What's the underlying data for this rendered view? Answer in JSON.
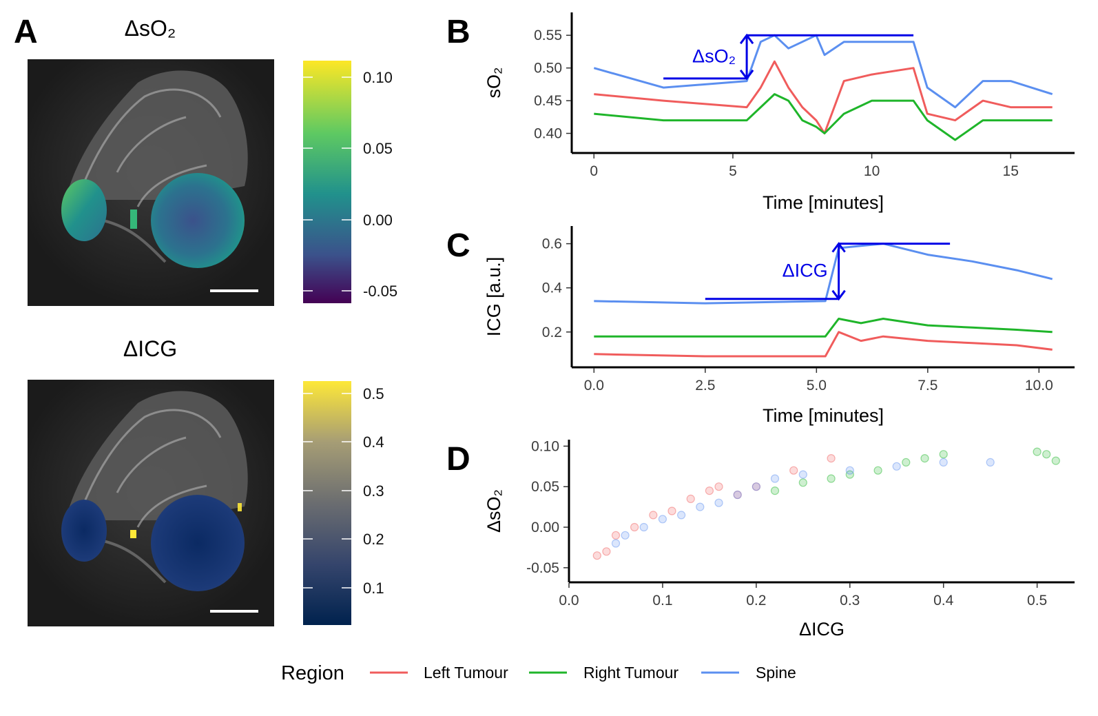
{
  "panel_letters": {
    "a": "A",
    "b": "B",
    "c": "C",
    "d": "D"
  },
  "panel_a": {
    "top_title": "ΔsO₂",
    "bottom_title": "ΔICG",
    "top_colorbar_labels": [
      "0.10",
      "0.05",
      "0.00",
      "-0.05"
    ],
    "bottom_colorbar_labels": [
      "0.5",
      "0.4",
      "0.3",
      "0.2",
      "0.1"
    ],
    "top_colormap": "viridis",
    "bottom_colormap": "cividis"
  },
  "colors": {
    "left_tumour": "#f05c5c",
    "right_tumour": "#1fb52a",
    "spine": "#5b8ff0",
    "annotation": "#0000e6"
  },
  "legend": {
    "title": "Region",
    "items": [
      "Left Tumour",
      "Right Tumour",
      "Spine"
    ]
  },
  "chart_data": [
    {
      "id": "B",
      "type": "line",
      "xlabel": "Time [minutes]",
      "ylabel": "sO₂",
      "xlim": [
        -0.8,
        17.3
      ],
      "ylim": [
        0.37,
        0.585
      ],
      "xticks": [
        0,
        5,
        10,
        15
      ],
      "xtick_labels": [
        "0",
        "5",
        "10",
        "15"
      ],
      "yticks": [
        0.4,
        0.45,
        0.5,
        0.55
      ],
      "ytick_labels": [
        "0.40",
        "0.45",
        "0.50",
        "0.55"
      ],
      "series": [
        {
          "name": "Left Tumour",
          "x": [
            0,
            2.5,
            5.5,
            6.0,
            6.5,
            7.0,
            7.5,
            8.0,
            8.3,
            9.0,
            10.0,
            11.5,
            12.0,
            13.0,
            14.0,
            15.0,
            16.5
          ],
          "y": [
            0.46,
            0.45,
            0.44,
            0.47,
            0.51,
            0.47,
            0.44,
            0.42,
            0.4,
            0.48,
            0.49,
            0.5,
            0.43,
            0.42,
            0.45,
            0.44,
            0.44
          ]
        },
        {
          "name": "Right Tumour",
          "x": [
            0,
            2.5,
            5.5,
            6.0,
            6.5,
            7.0,
            7.5,
            8.0,
            8.3,
            9.0,
            10.0,
            11.5,
            12.0,
            13.0,
            14.0,
            15.0,
            16.5
          ],
          "y": [
            0.43,
            0.42,
            0.42,
            0.44,
            0.46,
            0.45,
            0.42,
            0.41,
            0.4,
            0.43,
            0.45,
            0.45,
            0.42,
            0.39,
            0.42,
            0.42,
            0.42
          ]
        },
        {
          "name": "Spine",
          "x": [
            0,
            2.5,
            5.5,
            6.0,
            6.5,
            7.0,
            7.5,
            8.0,
            8.3,
            9.0,
            10.0,
            11.5,
            12.0,
            13.0,
            14.0,
            15.0,
            16.5
          ],
          "y": [
            0.5,
            0.47,
            0.48,
            0.54,
            0.55,
            0.53,
            0.54,
            0.55,
            0.52,
            0.54,
            0.54,
            0.54,
            0.47,
            0.44,
            0.48,
            0.48,
            0.46
          ]
        }
      ],
      "annotation": {
        "label": "ΔsO₂",
        "baseline": {
          "x": [
            2.5,
            5.5
          ],
          "y": 0.484
        },
        "plateau": {
          "x": [
            5.5,
            11.5
          ],
          "y": 0.55
        }
      }
    },
    {
      "id": "C",
      "type": "line",
      "xlabel": "Time [minutes]",
      "ylabel": "ICG [a.u.]",
      "xlim": [
        -0.5,
        10.8
      ],
      "ylim": [
        0.04,
        0.68
      ],
      "xticks": [
        0,
        2.5,
        5,
        7.5,
        10
      ],
      "xtick_labels": [
        "0.0",
        "2.5",
        "5.0",
        "7.5",
        "10.0"
      ],
      "yticks": [
        0.2,
        0.4,
        0.6
      ],
      "ytick_labels": [
        "0.2",
        "0.4",
        "0.6"
      ],
      "series": [
        {
          "name": "Left Tumour",
          "x": [
            0,
            2.5,
            5.2,
            5.5,
            6.0,
            6.5,
            7.5,
            8.5,
            9.5,
            10.3
          ],
          "y": [
            0.1,
            0.09,
            0.09,
            0.2,
            0.16,
            0.18,
            0.16,
            0.15,
            0.14,
            0.12
          ]
        },
        {
          "name": "Right Tumour",
          "x": [
            0,
            2.5,
            5.2,
            5.5,
            6.0,
            6.5,
            7.5,
            8.5,
            9.5,
            10.3
          ],
          "y": [
            0.18,
            0.18,
            0.18,
            0.26,
            0.24,
            0.26,
            0.23,
            0.22,
            0.21,
            0.2
          ]
        },
        {
          "name": "Spine",
          "x": [
            0,
            2.5,
            5.2,
            5.5,
            6.0,
            6.5,
            7.5,
            8.5,
            9.5,
            10.3
          ],
          "y": [
            0.34,
            0.33,
            0.34,
            0.58,
            0.59,
            0.6,
            0.55,
            0.52,
            0.48,
            0.44
          ]
        }
      ],
      "annotation": {
        "label": "ΔICG",
        "baseline": {
          "x": [
            2.5,
            5.5
          ],
          "y": 0.35
        },
        "plateau": {
          "x": [
            5.5,
            8.0
          ],
          "y": 0.6
        }
      }
    },
    {
      "id": "D",
      "type": "scatter",
      "xlabel": "ΔICG",
      "ylabel": "ΔsO₂",
      "xlim": [
        0.0,
        0.54
      ],
      "ylim": [
        -0.068,
        0.108
      ],
      "xticks": [
        0.0,
        0.1,
        0.2,
        0.3,
        0.4,
        0.5
      ],
      "xtick_labels": [
        "0.0",
        "0.1",
        "0.2",
        "0.3",
        "0.4",
        "0.5"
      ],
      "yticks": [
        -0.05,
        0.0,
        0.05,
        0.1
      ],
      "ytick_labels": [
        "-0.05",
        "0.00",
        "0.05",
        "0.10"
      ],
      "series": [
        {
          "name": "Left Tumour",
          "x": [
            0.03,
            0.04,
            0.05,
            0.07,
            0.09,
            0.11,
            0.13,
            0.15,
            0.16,
            0.18,
            0.2,
            0.24,
            0.28
          ],
          "y": [
            -0.035,
            -0.03,
            -0.01,
            0.0,
            0.015,
            0.02,
            0.035,
            0.045,
            0.05,
            0.04,
            0.05,
            0.07,
            0.085
          ]
        },
        {
          "name": "Right Tumour",
          "x": [
            0.22,
            0.25,
            0.28,
            0.3,
            0.33,
            0.36,
            0.38,
            0.4,
            0.5,
            0.51,
            0.52
          ],
          "y": [
            0.045,
            0.055,
            0.06,
            0.065,
            0.07,
            0.08,
            0.085,
            0.09,
            0.093,
            0.09,
            0.082
          ]
        },
        {
          "name": "Spine",
          "x": [
            0.05,
            0.06,
            0.08,
            0.1,
            0.12,
            0.14,
            0.16,
            0.18,
            0.2,
            0.22,
            0.25,
            0.3,
            0.35,
            0.4,
            0.45
          ],
          "y": [
            -0.02,
            -0.01,
            0.0,
            0.01,
            0.015,
            0.025,
            0.03,
            0.04,
            0.05,
            0.06,
            0.065,
            0.07,
            0.075,
            0.08,
            0.08
          ]
        }
      ]
    }
  ]
}
